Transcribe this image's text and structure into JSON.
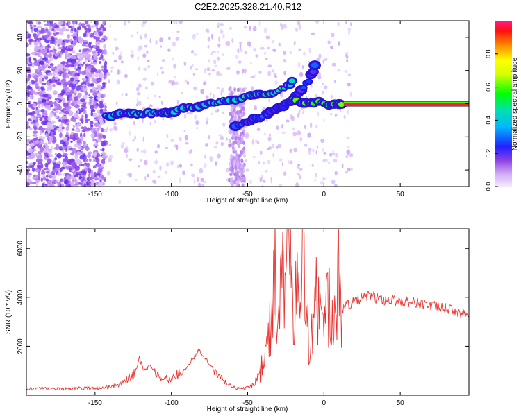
{
  "title": "C2E2.2025.328.21.40.R12",
  "chart_data": [
    {
      "type": "heatmap",
      "xlabel": "Height of straight line (km)",
      "ylabel": "Frequency (Hz)",
      "xlim": [
        -195,
        95
      ],
      "ylim": [
        -50,
        50
      ],
      "xticks": [
        -150,
        -100,
        -50,
        0,
        50
      ],
      "yticks": [
        -40,
        -20,
        0,
        20,
        40
      ],
      "colorbar": {
        "label": "Normalized spectral amplitude",
        "range": [
          0,
          1
        ],
        "ticks": [
          0.0,
          0.2,
          0.4,
          0.6,
          0.8
        ]
      },
      "tracks": [
        {
          "points": [
            [
              -143,
              -8
            ],
            [
              -130,
              -6
            ],
            [
              -115,
              -6
            ],
            [
              -100,
              -5
            ],
            [
              -90,
              -3
            ],
            [
              -80,
              -1
            ],
            [
              -70,
              1
            ],
            [
              -60,
              2
            ],
            [
              -50,
              4
            ],
            [
              -42,
              6
            ],
            [
              -35,
              6
            ],
            [
              -28,
              9
            ],
            [
              -22,
              12
            ],
            [
              -20,
              15
            ]
          ],
          "amplitude": 0.45
        },
        {
          "points": [
            [
              -58,
              -13
            ],
            [
              -50,
              -11
            ],
            [
              -42,
              -8
            ],
            [
              -35,
              -5
            ],
            [
              -30,
              -3
            ],
            [
              -25,
              0
            ],
            [
              -20,
              3
            ],
            [
              -15,
              8
            ],
            [
              -10,
              14
            ],
            [
              -7,
              20
            ],
            [
              -5,
              27
            ]
          ],
          "amplitude": 0.25
        },
        {
          "points": [
            [
              -20,
              2
            ],
            [
              -12,
              0
            ],
            [
              -5,
              1
            ],
            [
              0,
              0
            ],
            [
              5,
              -1
            ],
            [
              10,
              -1
            ],
            [
              13,
              0
            ]
          ],
          "amplitude": 0.55
        },
        {
          "points": [
            [
              13,
              0
            ],
            [
              95,
              0
            ]
          ],
          "amplitude": 0.98
        }
      ]
    },
    {
      "type": "line",
      "xlabel": "Height of straight line (km)",
      "ylabel": "SNR (10 * v/v)",
      "xlim": [
        -195,
        95
      ],
      "ylim": [
        0,
        6800
      ],
      "xticks": [
        -150,
        -100,
        -50,
        0,
        50
      ],
      "yticks": [
        2000,
        4000,
        6000
      ],
      "series": [
        {
          "color": "#e8322e",
          "x": [
            -195,
            -180,
            -160,
            -145,
            -135,
            -128,
            -124,
            -121,
            -118,
            -114,
            -110,
            -105,
            -100,
            -95,
            -90,
            -86,
            -82,
            -78,
            -74,
            -70,
            -66,
            -62,
            -58,
            -54,
            -50,
            -46,
            -43,
            -40,
            -38,
            -36,
            -34,
            -32,
            -30,
            -28,
            -26,
            -24,
            -22,
            -20,
            -18,
            -16,
            -14,
            -12,
            -10,
            -8,
            -6,
            -4,
            -2,
            0,
            2,
            4,
            6,
            8,
            10,
            12,
            15,
            20,
            25,
            30,
            35,
            40,
            50,
            60,
            70,
            80,
            90,
            95
          ],
          "values": [
            300,
            250,
            280,
            300,
            400,
            700,
            900,
            1500,
            1000,
            1200,
            900,
            700,
            600,
            900,
            1100,
            1500,
            1800,
            1500,
            1200,
            800,
            600,
            400,
            300,
            250,
            300,
            450,
            800,
            1200,
            1700,
            2500,
            3200,
            4700,
            3000,
            4200,
            5500,
            6800,
            5000,
            3200,
            4800,
            3200,
            5500,
            3800,
            2600,
            3000,
            4000,
            3600,
            3200,
            3300,
            3800,
            3600,
            2500,
            2800,
            5800,
            3500,
            3700,
            3800,
            3950,
            4100,
            3950,
            3900,
            3850,
            3800,
            3650,
            3550,
            3350,
            3250
          ]
        }
      ]
    }
  ]
}
